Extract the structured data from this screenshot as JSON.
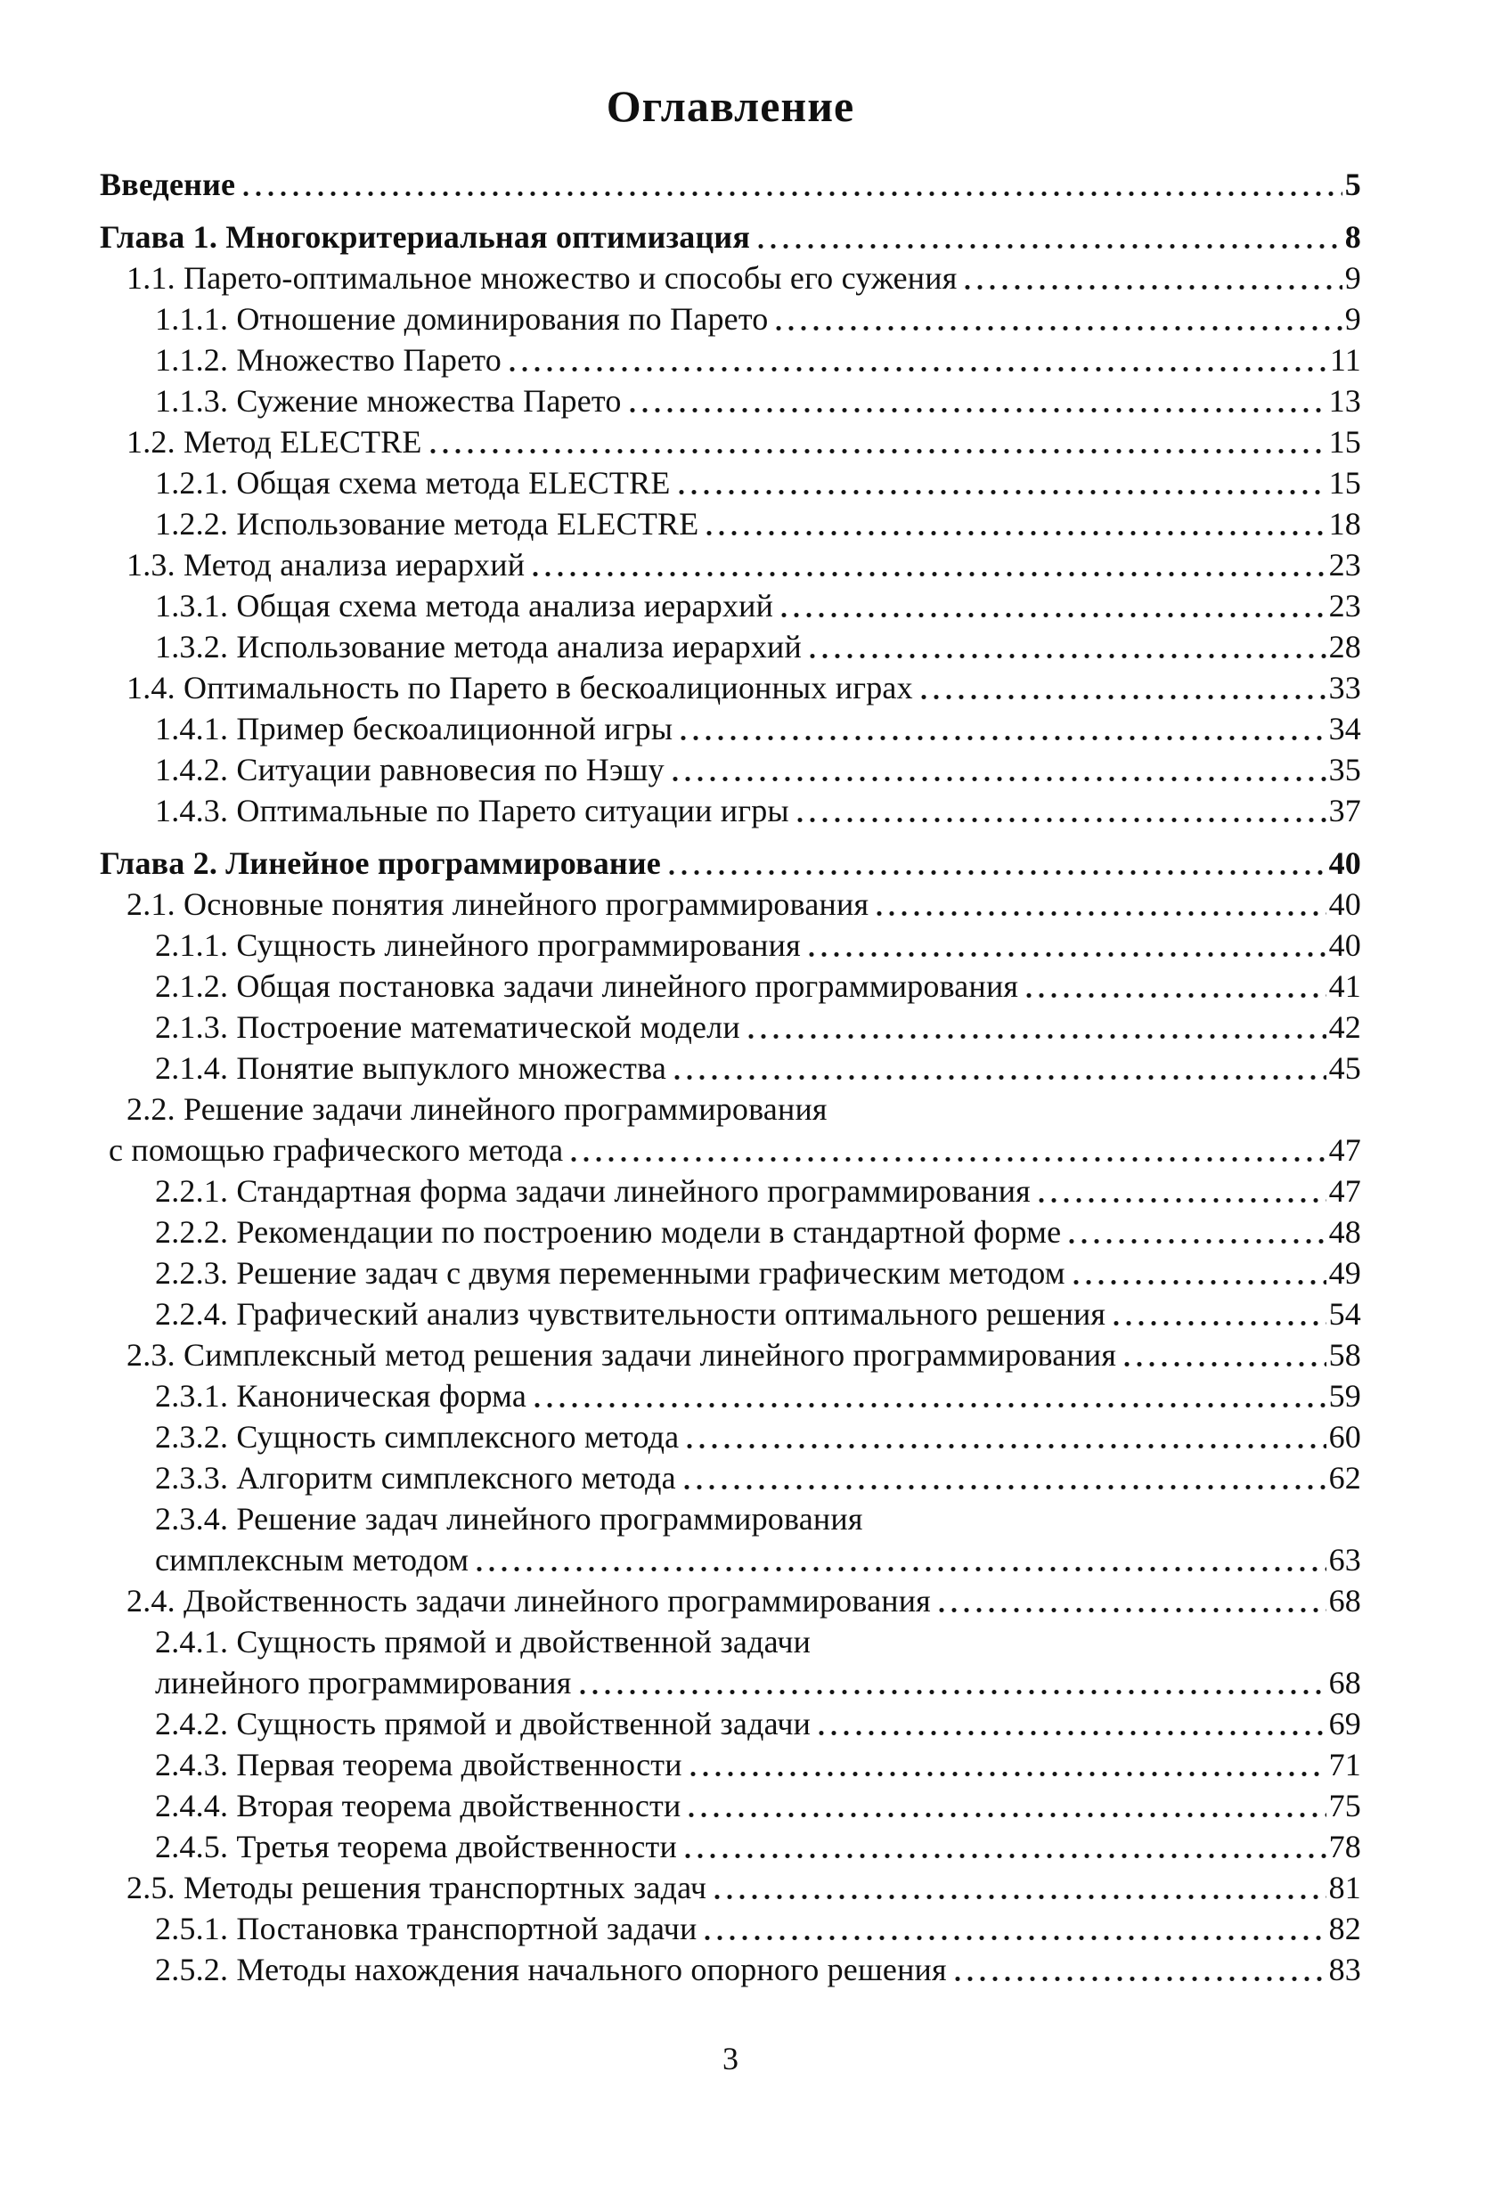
{
  "page": {
    "title": "Оглавление",
    "footer_page_number": "3"
  },
  "toc": {
    "entries": [
      {
        "text": "Введение",
        "page": "5",
        "level": 0,
        "bold": true,
        "spaced": false
      },
      {
        "text": "Глава 1. Многокритериальная оптимизация",
        "page": "8",
        "level": 0,
        "bold": true,
        "spaced": true
      },
      {
        "text": "1.1. Парето-оптимальное множество и способы его сужения",
        "page": "9",
        "level": 1
      },
      {
        "text": "1.1.1. Отношение доминирования по Парето",
        "page": "9",
        "level": 2
      },
      {
        "text": "1.1.2. Множество Парето",
        "page": "11",
        "level": 2
      },
      {
        "text": "1.1.3. Сужение множества Парето",
        "page": "13",
        "level": 2
      },
      {
        "text": "1.2. Метод ELECTRE",
        "page": "15",
        "level": 1
      },
      {
        "text": "1.2.1. Общая схема метода ELECTRE",
        "page": "15",
        "level": 2
      },
      {
        "text": "1.2.2. Использование метода ELECTRE",
        "page": "18",
        "level": 2
      },
      {
        "text": "1.3. Метод анализа иерархий",
        "page": "23",
        "level": 1
      },
      {
        "text": "1.3.1. Общая схема метода анализа иерархий",
        "page": "23",
        "level": 2
      },
      {
        "text": "1.3.2. Использование метода анализа иерархий",
        "page": "28",
        "level": 2
      },
      {
        "text": "1.4. Оптимальность по Парето в бескоалиционных играх",
        "page": "33",
        "level": 1
      },
      {
        "text": "1.4.1. Пример бескоалиционной игры",
        "page": "34",
        "level": 2
      },
      {
        "text": "1.4.2. Ситуации равновесия по Нэшу",
        "page": "35",
        "level": 2
      },
      {
        "text": "1.4.3. Оптимальные по Парето ситуации игры",
        "page": "37",
        "level": 2
      },
      {
        "text": "Глава 2. Линейное программирование",
        "page": "40",
        "level": 0,
        "bold": true,
        "spaced": true
      },
      {
        "text": "2.1. Основные понятия линейного программирования",
        "page": "40",
        "level": 1
      },
      {
        "text": "2.1.1. Сущность линейного программирования",
        "page": "40",
        "level": 2
      },
      {
        "text": "2.1.2. Общая постановка задачи линейного программирования",
        "page": "41",
        "level": 2
      },
      {
        "text": "2.1.3. Построение математической модели",
        "page": "42",
        "level": 2
      },
      {
        "text": "2.1.4. Понятие выпуклого множества",
        "page": "45",
        "level": 2
      },
      {
        "text": "2.2. Решение задачи линейного программирования",
        "page": null,
        "level": 1
      },
      {
        "text": "с помощью графического метода",
        "page": "47",
        "level": 0,
        "continuation": true
      },
      {
        "text": "2.2.1. Стандартная форма задачи линейного программирования",
        "page": "47",
        "level": 2
      },
      {
        "text": "2.2.2. Рекомендации по построению модели в стандартной форме",
        "page": "48",
        "level": 2
      },
      {
        "text": "2.2.3. Решение задач с двумя переменными графическим методом",
        "page": "49",
        "level": 2
      },
      {
        "text": "2.2.4. Графический анализ чувствительности оптимального решения",
        "page": "54",
        "level": 2
      },
      {
        "text": "2.3. Симплексный метод решения задачи линейного программирования",
        "page": "58",
        "level": 1
      },
      {
        "text": "2.3.1. Каноническая форма",
        "page": "59",
        "level": 2
      },
      {
        "text": "2.3.2. Сущность симплексного метода",
        "page": "60",
        "level": 2
      },
      {
        "text": "2.3.3. Алгоритм симплексного метода",
        "page": "62",
        "level": 2
      },
      {
        "text": "2.3.4. Решение задач линейного программирования",
        "page": null,
        "level": 2
      },
      {
        "text": "симплексным методом",
        "page": "63",
        "level": 2,
        "continuation": true
      },
      {
        "text": "2.4. Двойственность задачи линейного программирования",
        "page": "68",
        "level": 1
      },
      {
        "text": "2.4.1. Сущность прямой и двойственной задачи",
        "page": null,
        "level": 2
      },
      {
        "text": "линейного программирования",
        "page": "68",
        "level": 2,
        "continuation": true
      },
      {
        "text": "2.4.2. Сущность прямой и двойственной задачи",
        "page": "69",
        "level": 2
      },
      {
        "text": "2.4.3. Первая теорема двойственности",
        "page": "71",
        "level": 2
      },
      {
        "text": "2.4.4. Вторая теорема двойственности",
        "page": "75",
        "level": 2
      },
      {
        "text": "2.4.5. Третья теорема двойственности",
        "page": "78",
        "level": 2
      },
      {
        "text": "2.5. Методы решения транспортных задач",
        "page": "81",
        "level": 1
      },
      {
        "text": "2.5.1. Постановка транспортной задачи",
        "page": "82",
        "level": 2
      },
      {
        "text": "2.5.2. Методы нахождения начального опорного решения",
        "page": "83",
        "level": 2
      }
    ]
  }
}
